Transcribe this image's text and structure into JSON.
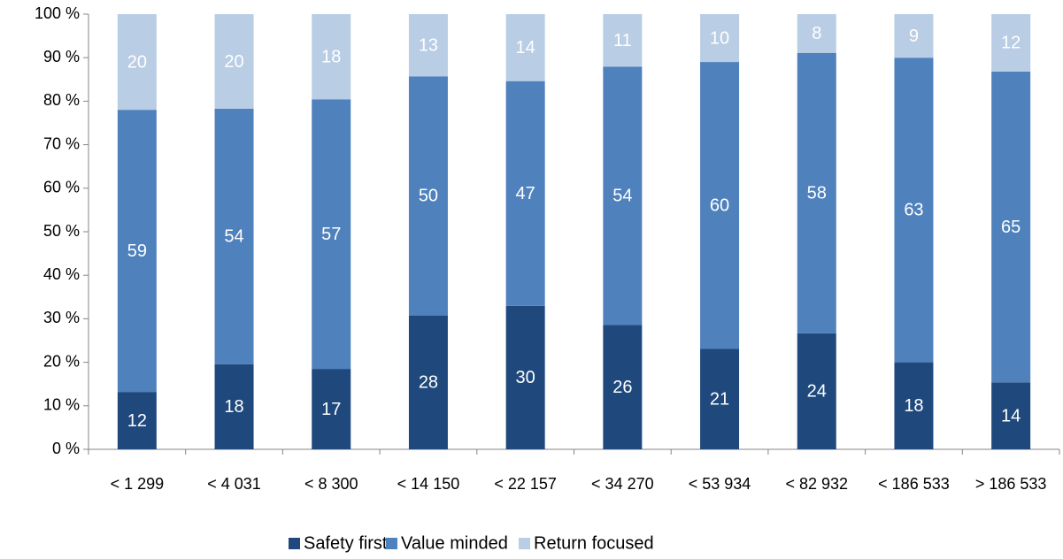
{
  "chart_data": {
    "type": "bar",
    "stacked": "percent",
    "categories": [
      "< 1 299",
      "< 4 031",
      "< 8 300",
      "< 14 150",
      "< 22 157",
      "< 34 270",
      "< 53 934",
      "< 82 932",
      "< 186 533",
      "> 186 533"
    ],
    "series": [
      {
        "name": "Safety first",
        "color": "#1f497d",
        "values": [
          12,
          18,
          17,
          28,
          30,
          26,
          21,
          24,
          18,
          14
        ]
      },
      {
        "name": "Value minded",
        "color": "#4f81bd",
        "values": [
          59,
          54,
          57,
          50,
          47,
          54,
          60,
          58,
          63,
          65
        ]
      },
      {
        "name": "Return focused",
        "color": "#b9cde5",
        "values": [
          20,
          20,
          18,
          13,
          14,
          11,
          10,
          8,
          9,
          12
        ]
      }
    ],
    "ylim": [
      0,
      100
    ],
    "yticks": [
      {
        "value": 0,
        "label": "0 %"
      },
      {
        "value": 10,
        "label": "10 %"
      },
      {
        "value": 20,
        "label": "20 %"
      },
      {
        "value": 30,
        "label": "30 %"
      },
      {
        "value": 40,
        "label": "40 %"
      },
      {
        "value": 50,
        "label": "50 %"
      },
      {
        "value": 60,
        "label": "60 %"
      },
      {
        "value": 70,
        "label": "70 %"
      },
      {
        "value": 80,
        "label": "80 %"
      },
      {
        "value": 90,
        "label": "90 %"
      },
      {
        "value": 100,
        "label": "100 %"
      }
    ],
    "grid": false,
    "legend": "bottom"
  }
}
